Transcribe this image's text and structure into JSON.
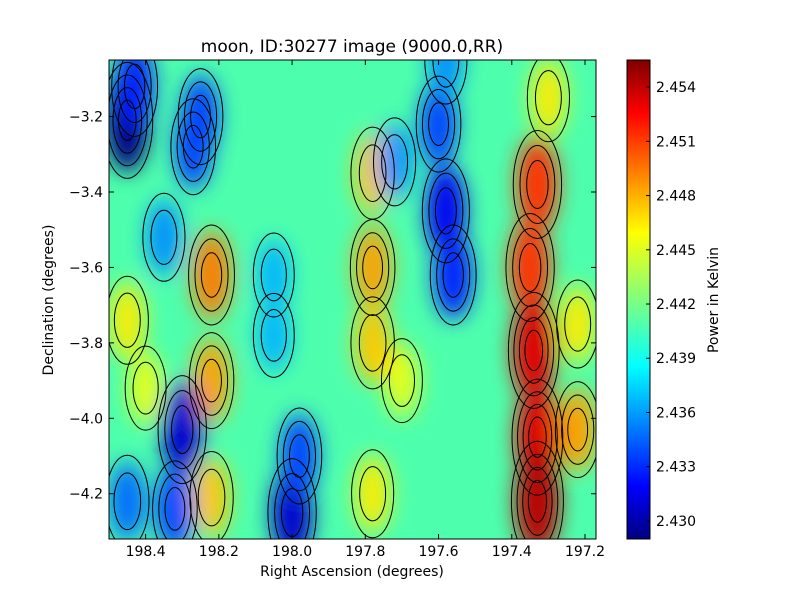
{
  "chart_data": {
    "type": "heatmap",
    "title": "moon, ID:30277 image (9000.0,RR)",
    "xlabel": "Right Ascension (degrees)",
    "ylabel": "Declination (degrees)",
    "xlim": [
      198.5,
      197.17
    ],
    "ylim": [
      -4.32,
      -3.05
    ],
    "x_ticks": [
      198.4,
      198.2,
      198.0,
      197.8,
      197.6,
      197.4,
      197.2
    ],
    "x_tick_labels": [
      "198.4",
      "198.2",
      "198.0",
      "197.8",
      "197.6",
      "197.4",
      "197.2"
    ],
    "y_ticks": [
      -3.2,
      -3.4,
      -3.6,
      -3.8,
      -4.0,
      -4.2
    ],
    "y_tick_labels": [
      "−3.2",
      "−3.4",
      "−3.6",
      "−3.8",
      "−4.0",
      "−4.2"
    ],
    "colorbar": {
      "label": "Power in Kelvin",
      "range": [
        2.429,
        2.4555
      ],
      "ticks": [
        2.43,
        2.433,
        2.436,
        2.439,
        2.442,
        2.445,
        2.448,
        2.451,
        2.454
      ],
      "tick_labels": [
        "2.430",
        "2.433",
        "2.436",
        "2.439",
        "2.442",
        "2.445",
        "2.448",
        "2.451",
        "2.454"
      ],
      "colormap": "jet"
    },
    "contours": "black",
    "grid": false,
    "features": [
      {
        "ra": 198.45,
        "dec": -3.21,
        "value": 2.429
      },
      {
        "ra": 198.43,
        "dec": -3.12,
        "value": 2.433
      },
      {
        "ra": 198.25,
        "dec": -3.2,
        "value": 2.434
      },
      {
        "ra": 198.27,
        "dec": -3.28,
        "value": 2.434
      },
      {
        "ra": 198.22,
        "dec": -3.62,
        "value": 2.449
      },
      {
        "ra": 198.22,
        "dec": -3.9,
        "value": 2.448
      },
      {
        "ra": 198.22,
        "dec": -4.21,
        "value": 2.447
      },
      {
        "ra": 198.3,
        "dec": -4.03,
        "value": 2.431
      },
      {
        "ra": 198.32,
        "dec": -4.24,
        "value": 2.434
      },
      {
        "ra": 198.45,
        "dec": -4.22,
        "value": 2.435
      },
      {
        "ra": 198.45,
        "dec": -3.74,
        "value": 2.446
      },
      {
        "ra": 198.4,
        "dec": -3.92,
        "value": 2.445
      },
      {
        "ra": 198.35,
        "dec": -3.52,
        "value": 2.436
      },
      {
        "ra": 198.05,
        "dec": -3.62,
        "value": 2.437
      },
      {
        "ra": 198.05,
        "dec": -3.78,
        "value": 2.437
      },
      {
        "ra": 198.0,
        "dec": -4.25,
        "value": 2.431
      },
      {
        "ra": 197.98,
        "dec": -4.1,
        "value": 2.434
      },
      {
        "ra": 197.78,
        "dec": -3.6,
        "value": 2.448
      },
      {
        "ra": 197.78,
        "dec": -3.35,
        "value": 2.447
      },
      {
        "ra": 197.78,
        "dec": -3.8,
        "value": 2.447
      },
      {
        "ra": 197.78,
        "dec": -4.2,
        "value": 2.446
      },
      {
        "ra": 197.72,
        "dec": -3.32,
        "value": 2.436
      },
      {
        "ra": 197.7,
        "dec": -3.9,
        "value": 2.445
      },
      {
        "ra": 197.6,
        "dec": -3.22,
        "value": 2.434
      },
      {
        "ra": 197.58,
        "dec": -3.45,
        "value": 2.432
      },
      {
        "ra": 197.56,
        "dec": -3.62,
        "value": 2.433
      },
      {
        "ra": 197.58,
        "dec": -3.05,
        "value": 2.436
      },
      {
        "ra": 197.33,
        "dec": -3.38,
        "value": 2.451
      },
      {
        "ra": 197.35,
        "dec": -3.6,
        "value": 2.451
      },
      {
        "ra": 197.34,
        "dec": -3.82,
        "value": 2.453
      },
      {
        "ra": 197.33,
        "dec": -4.05,
        "value": 2.453
      },
      {
        "ra": 197.33,
        "dec": -4.22,
        "value": 2.454
      },
      {
        "ra": 197.3,
        "dec": -3.15,
        "value": 2.446
      },
      {
        "ra": 197.22,
        "dec": -4.03,
        "value": 2.448
      },
      {
        "ra": 197.22,
        "dec": -3.75,
        "value": 2.446
      }
    ]
  }
}
